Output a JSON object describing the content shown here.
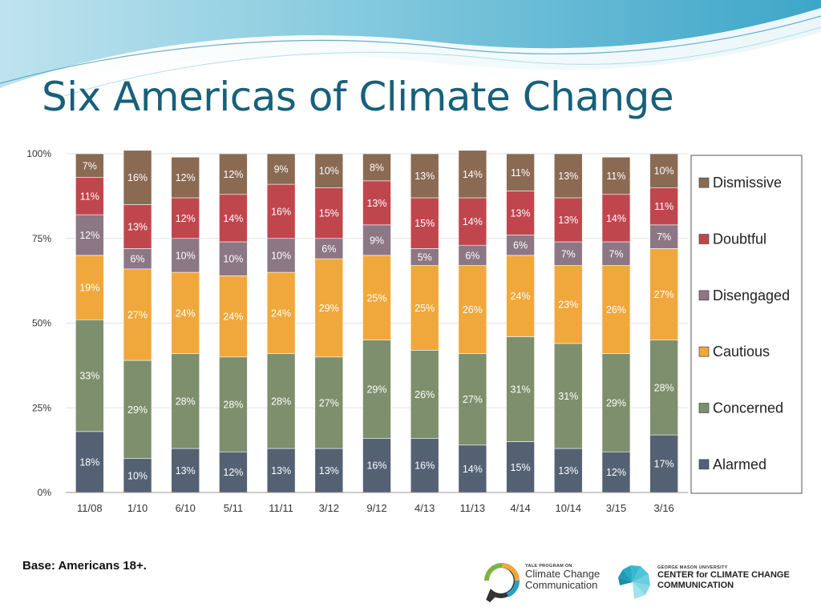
{
  "slide": {
    "title": "Six Americas of Climate Change",
    "base_note": "Base: Americans 18+."
  },
  "logos": {
    "yale_small": "YALE PROGRAM ON",
    "yale_line1": "Climate Change",
    "yale_line2": "Communication",
    "gmu_small": "GEORGE MASON UNIVERSITY",
    "gmu_line1": "CENTER for CLIMATE CHANGE",
    "gmu_line2": "COMMUNICATION"
  },
  "chart_data": {
    "type": "stacked-bar",
    "title": "Six Americas of Climate Change",
    "categories": [
      "11/08",
      "1/10",
      "6/10",
      "5/11",
      "11/11",
      "3/12",
      "9/12",
      "4/13",
      "11/13",
      "4/14",
      "10/14",
      "3/15",
      "3/16"
    ],
    "y_ticks": [
      "0%",
      "25%",
      "50%",
      "75%",
      "100%"
    ],
    "ylim": [
      0,
      100
    ],
    "legend_position": "right",
    "series": [
      {
        "name": "Alarmed",
        "color": "#536173",
        "label_color": "#ffffff",
        "values": [
          18,
          10,
          13,
          12,
          13,
          13,
          16,
          16,
          14,
          15,
          13,
          12,
          17
        ]
      },
      {
        "name": "Concerned",
        "color": "#7d8f6c",
        "label_color": "#ffffff",
        "values": [
          33,
          29,
          28,
          28,
          28,
          27,
          29,
          26,
          27,
          31,
          31,
          29,
          28
        ]
      },
      {
        "name": "Cautious",
        "color": "#f0a83c",
        "label_color": "#ffffff",
        "values": [
          19,
          27,
          24,
          24,
          24,
          29,
          25,
          25,
          26,
          24,
          23,
          26,
          27
        ]
      },
      {
        "name": "Disengaged",
        "color": "#8c7784",
        "label_color": "#ffffff",
        "values": [
          12,
          6,
          10,
          10,
          10,
          6,
          9,
          5,
          6,
          6,
          7,
          7,
          7
        ]
      },
      {
        "name": "Doubtful",
        "color": "#c0464e",
        "label_color": "#ffffff",
        "values": [
          11,
          13,
          12,
          14,
          16,
          15,
          13,
          15,
          14,
          13,
          13,
          14,
          11
        ]
      },
      {
        "name": "Dismissive",
        "color": "#8a6a52",
        "label_color": "#ffffff",
        "values": [
          7,
          16,
          12,
          12,
          9,
          10,
          8,
          13,
          14,
          11,
          13,
          11,
          10
        ]
      }
    ],
    "legend_order": [
      "Dismissive",
      "Doubtful",
      "Disengaged",
      "Cautious",
      "Concerned",
      "Alarmed"
    ]
  }
}
